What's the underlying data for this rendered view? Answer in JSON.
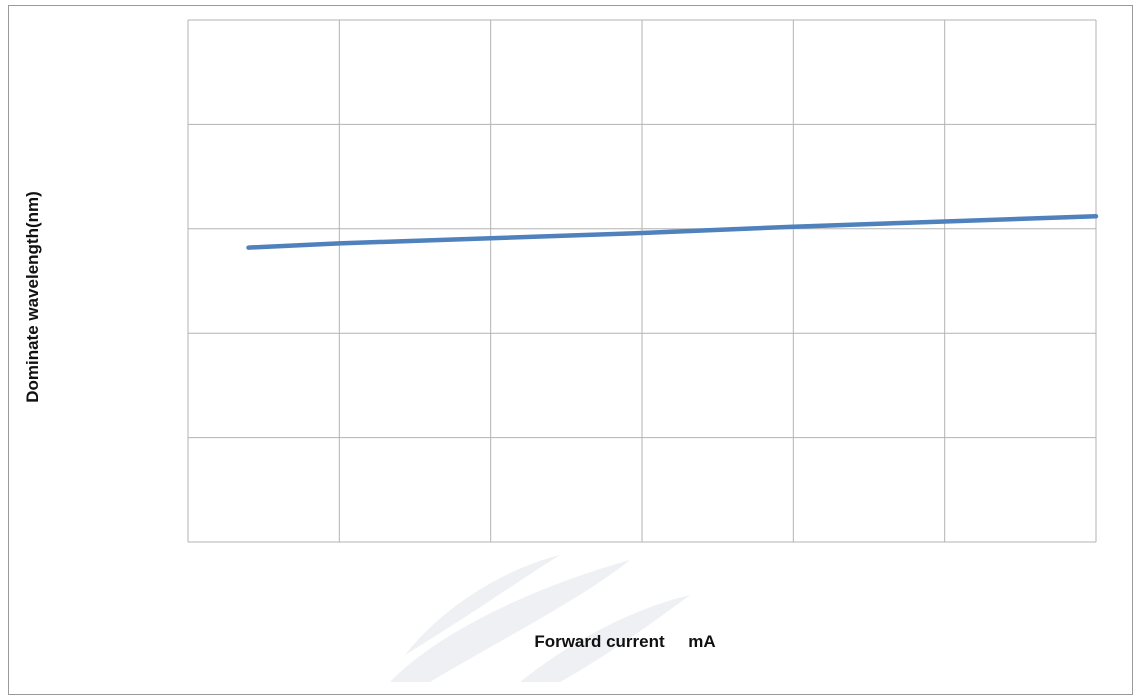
{
  "chart_data": {
    "type": "line",
    "title": "",
    "xlabel": "Forward current     mA",
    "ylabel": "Dominate wavelength(nm)",
    "xlim": [
      0,
      6
    ],
    "ylim": [
      0,
      5
    ],
    "grid": true,
    "x": [
      0.4,
      1.0,
      2.0,
      3.0,
      4.0,
      5.0,
      6.0
    ],
    "series": [
      {
        "values": [
          2.82,
          2.86,
          2.91,
          2.96,
          3.02,
          3.07,
          3.12
        ]
      }
    ],
    "colors": {
      "line": "#4f81bd",
      "grid": "#b3b3b3",
      "frame": "#9a9a9a",
      "watermark": "#eef0f4"
    }
  }
}
